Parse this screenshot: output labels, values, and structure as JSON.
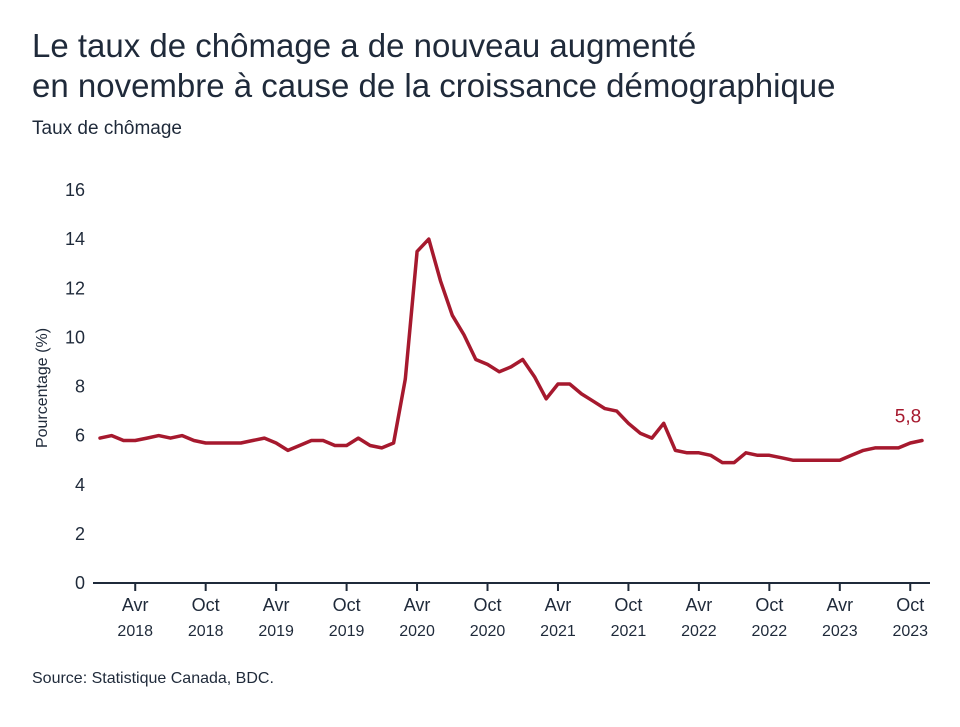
{
  "title_line1": "Le taux de chômage a de nouveau augmenté",
  "title_line2": "en novembre à cause de la croissance démographique",
  "subtitle": "Taux de chômage",
  "source": "Source: Statistique Canada, BDC.",
  "colors": {
    "line": "#a6192e",
    "text": "#1f2a3a",
    "axis": "#1f2a3a"
  },
  "chart_data": {
    "type": "line",
    "ylabel": "Pourcentage (%)",
    "ylim": [
      0,
      16
    ],
    "yticks": [
      0,
      2,
      4,
      6,
      8,
      10,
      12,
      14,
      16
    ],
    "grid": false,
    "xticks": [
      {
        "month": "Avr",
        "year": "2018",
        "date": "2018-04"
      },
      {
        "month": "Oct",
        "year": "2018",
        "date": "2018-10"
      },
      {
        "month": "Avr",
        "year": "2019",
        "date": "2019-04"
      },
      {
        "month": "Oct",
        "year": "2019",
        "date": "2019-10"
      },
      {
        "month": "Avr",
        "year": "2020",
        "date": "2020-04"
      },
      {
        "month": "Oct",
        "year": "2020",
        "date": "2020-10"
      },
      {
        "month": "Avr",
        "year": "2021",
        "date": "2021-04"
      },
      {
        "month": "Oct",
        "year": "2021",
        "date": "2021-10"
      },
      {
        "month": "Avr",
        "year": "2022",
        "date": "2022-04"
      },
      {
        "month": "Oct",
        "year": "2022",
        "date": "2022-10"
      },
      {
        "month": "Avr",
        "year": "2023",
        "date": "2023-04"
      },
      {
        "month": "Oct",
        "year": "2023",
        "date": "2023-10"
      }
    ],
    "end_label": "5,8",
    "series": [
      {
        "x": [
          "2018-01",
          "2018-02",
          "2018-03",
          "2018-04",
          "2018-05",
          "2018-06",
          "2018-07",
          "2018-08",
          "2018-09",
          "2018-10",
          "2018-11",
          "2018-12",
          "2019-01",
          "2019-02",
          "2019-03",
          "2019-04",
          "2019-05",
          "2019-06",
          "2019-07",
          "2019-08",
          "2019-09",
          "2019-10",
          "2019-11",
          "2019-12",
          "2020-01",
          "2020-02",
          "2020-03",
          "2020-04",
          "2020-05",
          "2020-06",
          "2020-07",
          "2020-08",
          "2020-09",
          "2020-10",
          "2020-11",
          "2020-12",
          "2021-01",
          "2021-02",
          "2021-03",
          "2021-04",
          "2021-05",
          "2021-06",
          "2021-07",
          "2021-08",
          "2021-09",
          "2021-10",
          "2021-11",
          "2021-12",
          "2022-01",
          "2022-02",
          "2022-03",
          "2022-04",
          "2022-05",
          "2022-06",
          "2022-07",
          "2022-08",
          "2022-09",
          "2022-10",
          "2022-11",
          "2022-12",
          "2023-01",
          "2023-02",
          "2023-03",
          "2023-04",
          "2023-05",
          "2023-06",
          "2023-07",
          "2023-08",
          "2023-09",
          "2023-10",
          "2023-11"
        ],
        "values": [
          5.9,
          6.0,
          5.8,
          5.8,
          5.9,
          6.0,
          5.9,
          6.0,
          5.8,
          5.7,
          5.7,
          5.7,
          5.7,
          5.8,
          5.9,
          5.7,
          5.4,
          5.6,
          5.8,
          5.8,
          5.6,
          5.6,
          5.9,
          5.6,
          5.5,
          5.7,
          8.3,
          13.5,
          14.0,
          12.3,
          10.9,
          10.1,
          9.1,
          8.9,
          8.6,
          8.8,
          9.1,
          8.4,
          7.5,
          8.1,
          8.1,
          7.7,
          7.4,
          7.1,
          7.0,
          6.5,
          6.1,
          5.9,
          6.5,
          5.4,
          5.3,
          5.3,
          5.2,
          4.9,
          4.9,
          5.3,
          5.2,
          5.2,
          5.1,
          5.0,
          5.0,
          5.0,
          5.0,
          5.0,
          5.2,
          5.4,
          5.5,
          5.5,
          5.5,
          5.7,
          5.8
        ]
      }
    ]
  }
}
